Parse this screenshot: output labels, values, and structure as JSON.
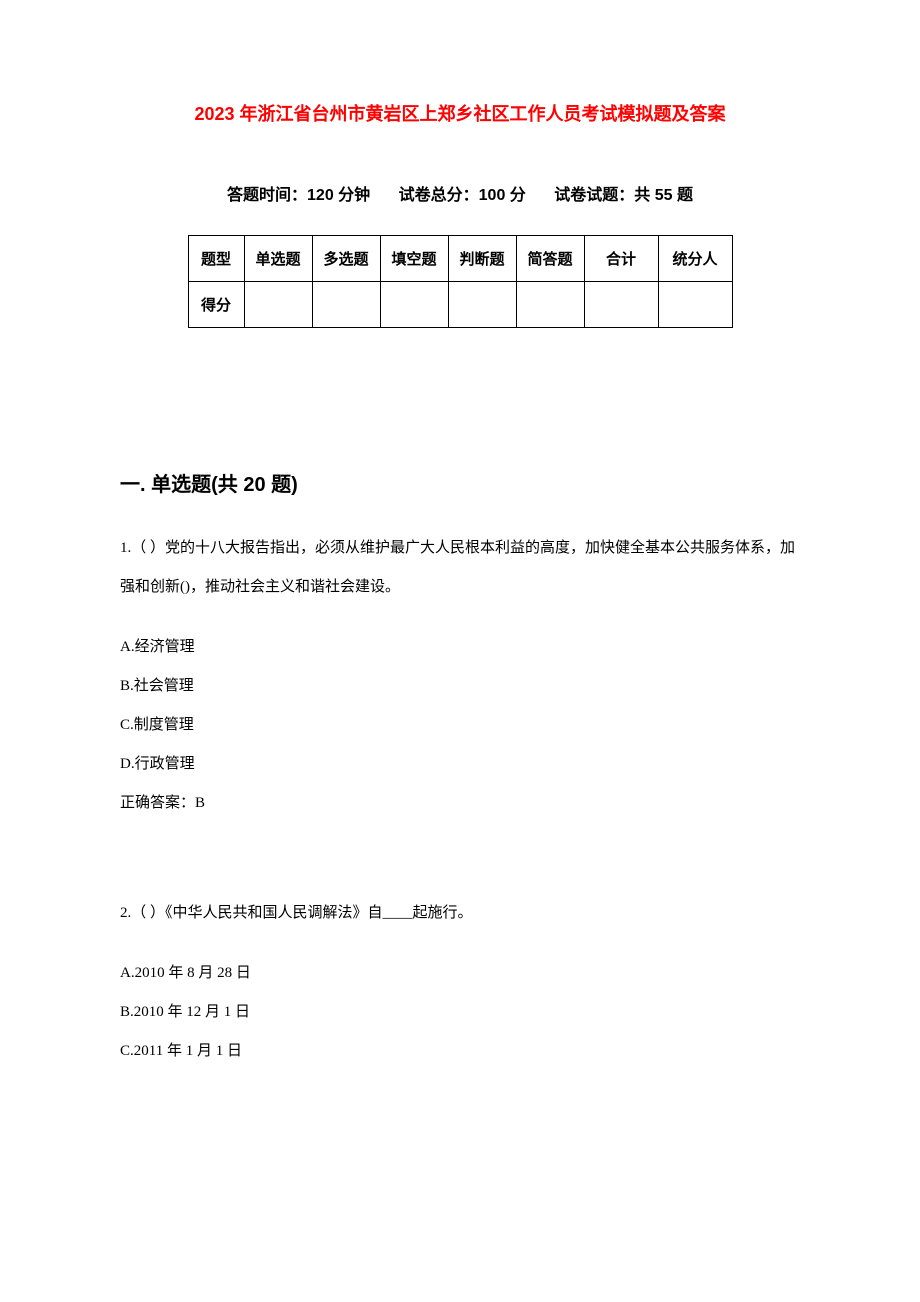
{
  "title": "2023 年浙江省台州市黄岩区上郑乡社区工作人员考试模拟题及答案",
  "meta": {
    "time_label": "答题时间：120 分钟",
    "total_label": "试卷总分：100 分",
    "count_label": "试卷试题：共 55 题"
  },
  "table": {
    "headers": [
      "题型",
      "单选题",
      "多选题",
      "填空题",
      "判断题",
      "简答题",
      "合计",
      "统分人"
    ],
    "row2_label": "得分"
  },
  "section1": {
    "heading": "一. 单选题(共 20 题)",
    "q1": {
      "text": "1.（ ）党的十八大报告指出，必须从维护最广大人民根本利益的高度，加快健全基本公共服务体系，加强和创新()，推动社会主义和谐社会建设。",
      "optA": "A.经济管理",
      "optB": "B.社会管理",
      "optC": "C.制度管理",
      "optD": "D.行政管理",
      "answer": "正确答案：B"
    },
    "q2": {
      "text": "2.（ ）《中华人民共和国人民调解法》自____起施行。",
      "optA": "A.2010 年 8 月 28 日",
      "optB": "B.2010 年 12 月 1 日",
      "optC": "C.2011 年 1 月 1 日"
    }
  },
  "colors": {
    "title_color": "#ff0000",
    "text_color": "#000000",
    "background": "#ffffff",
    "border_color": "#000000"
  }
}
